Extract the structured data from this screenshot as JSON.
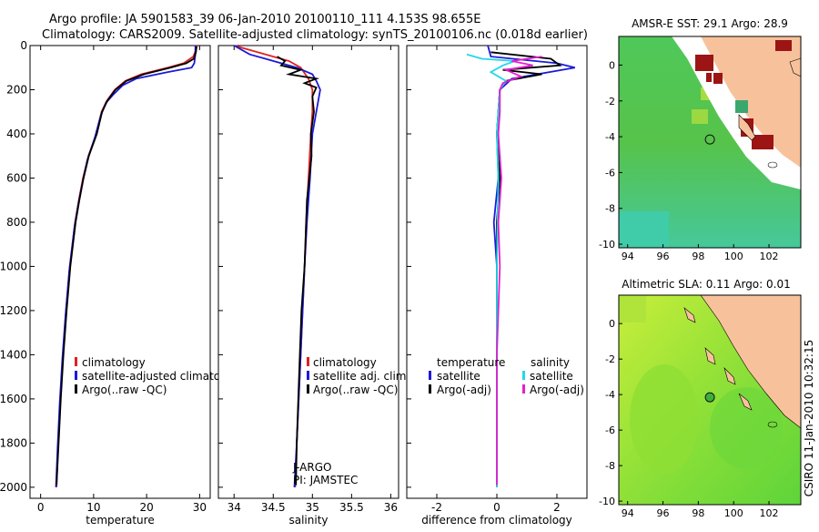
{
  "title": {
    "line1": "Argo profile: JA 5901583_39 06-Jan-2010 20100110_111 4.153S 98.655E",
    "line2": "Climatology: CARS2009. Satellite-adjusted climatology: synTS_20100106.nc (0.018d earlier)"
  },
  "side_label": "CSIRO 11-Jan-2010 10:32:15",
  "colors": {
    "climatology": "#dd2222",
    "satellite": "#1a1ad8",
    "argo": "#000000",
    "salinity_satellite": "#22d8e8",
    "salinity_argo": "#e020d0",
    "land": "#f7c29b",
    "marker_sst": "#111111",
    "marker_sla": "#3cae3c"
  },
  "chart_data": [
    {
      "type": "line",
      "name": "temperature",
      "xlabel": "temperature",
      "ylabel": "",
      "xlim": [
        -2,
        32
      ],
      "ylim": [
        2050,
        0
      ],
      "xticks": [
        0,
        10,
        20,
        30
      ],
      "yticks": [
        0,
        200,
        400,
        600,
        800,
        1000,
        1200,
        1400,
        1600,
        1800,
        2000
      ],
      "legend": [
        "climatology",
        "satellite-adjusted climatology",
        "Argo(..raw -QC)"
      ],
      "series": [
        {
          "name": "climatology",
          "color_key": "climatology",
          "points": [
            [
              29.5,
              0
            ],
            [
              29.3,
              20
            ],
            [
              28.8,
              50
            ],
            [
              27.0,
              80
            ],
            [
              24.0,
              100
            ],
            [
              19.0,
              130
            ],
            [
              16.0,
              160
            ],
            [
              14.0,
              200
            ],
            [
              12.5,
              250
            ],
            [
              11.5,
              300
            ],
            [
              10.5,
              400
            ],
            [
              9.0,
              500
            ],
            [
              8.0,
              600
            ],
            [
              7.2,
              700
            ],
            [
              6.5,
              800
            ],
            [
              6.0,
              900
            ],
            [
              5.5,
              1000
            ],
            [
              4.8,
              1200
            ],
            [
              4.2,
              1400
            ],
            [
              3.7,
              1600
            ],
            [
              3.3,
              1800
            ],
            [
              3.0,
              2000
            ]
          ]
        },
        {
          "name": "satellite",
          "color_key": "satellite",
          "points": [
            [
              29.2,
              0
            ],
            [
              29.2,
              40
            ],
            [
              29.0,
              80
            ],
            [
              28.5,
              100
            ],
            [
              24.0,
              120
            ],
            [
              18.0,
              150
            ],
            [
              15.5,
              180
            ],
            [
              13.8,
              220
            ],
            [
              12.3,
              260
            ],
            [
              11.3,
              320
            ],
            [
              10.2,
              420
            ],
            [
              8.8,
              520
            ],
            [
              7.9,
              620
            ],
            [
              7.1,
              720
            ],
            [
              6.4,
              820
            ],
            [
              5.9,
              920
            ],
            [
              5.4,
              1020
            ],
            [
              4.7,
              1220
            ],
            [
              4.1,
              1420
            ],
            [
              3.6,
              1620
            ],
            [
              3.2,
              1820
            ],
            [
              2.9,
              2000
            ]
          ]
        },
        {
          "name": "argo",
          "color_key": "argo",
          "points": [
            [
              29.4,
              5
            ],
            [
              29.3,
              30
            ],
            [
              28.9,
              60
            ],
            [
              27.5,
              80
            ],
            [
              24.5,
              100
            ],
            [
              19.5,
              130
            ],
            [
              16.2,
              160
            ],
            [
              14.1,
              200
            ],
            [
              12.6,
              250
            ],
            [
              11.6,
              300
            ],
            [
              10.6,
              400
            ],
            [
              9.1,
              500
            ],
            [
              8.1,
              600
            ],
            [
              7.3,
              700
            ],
            [
              6.6,
              800
            ],
            [
              6.1,
              900
            ],
            [
              5.6,
              1000
            ],
            [
              4.9,
              1200
            ],
            [
              4.3,
              1400
            ],
            [
              3.8,
              1600
            ],
            [
              3.4,
              1800
            ],
            [
              3.0,
              1990
            ]
          ]
        }
      ]
    },
    {
      "type": "line",
      "name": "salinity",
      "xlabel": "salinity",
      "xlim": [
        33.8,
        36.1
      ],
      "ylim": [
        2050,
        0
      ],
      "xticks": [
        34,
        34.5,
        35,
        35.5,
        36
      ],
      "legend": [
        "climatology",
        "satellite adj. clim.",
        "Argo(..raw -QC)"
      ],
      "series": [
        {
          "name": "climatology",
          "color_key": "climatology",
          "points": [
            [
              34.0,
              0
            ],
            [
              34.3,
              30
            ],
            [
              34.5,
              50
            ],
            [
              34.7,
              70
            ],
            [
              34.85,
              100
            ],
            [
              34.95,
              150
            ],
            [
              35.0,
              200
            ],
            [
              35.0,
              300
            ],
            [
              34.98,
              400
            ],
            [
              34.95,
              600
            ],
            [
              34.92,
              800
            ],
            [
              34.9,
              1000
            ],
            [
              34.85,
              1400
            ],
            [
              34.8,
              1800
            ],
            [
              34.78,
              2000
            ]
          ]
        },
        {
          "name": "satellite",
          "color_key": "satellite",
          "points": [
            [
              34.0,
              0
            ],
            [
              34.2,
              40
            ],
            [
              34.4,
              60
            ],
            [
              34.6,
              80
            ],
            [
              34.8,
              100
            ],
            [
              35.0,
              130
            ],
            [
              35.05,
              160
            ],
            [
              35.1,
              200
            ],
            [
              35.05,
              300
            ],
            [
              35.0,
              400
            ],
            [
              34.97,
              600
            ],
            [
              34.93,
              800
            ],
            [
              34.9,
              1000
            ],
            [
              34.85,
              1400
            ],
            [
              34.8,
              1800
            ],
            [
              34.77,
              2000
            ]
          ]
        },
        {
          "name": "argo",
          "color_key": "argo",
          "points": [
            [
              34.55,
              50
            ],
            [
              34.65,
              70
            ],
            [
              34.6,
              90
            ],
            [
              34.85,
              110
            ],
            [
              34.7,
              130
            ],
            [
              35.05,
              150
            ],
            [
              34.9,
              170
            ],
            [
              35.05,
              190
            ],
            [
              35.0,
              230
            ],
            [
              35.02,
              300
            ],
            [
              34.98,
              400
            ],
            [
              34.99,
              500
            ],
            [
              34.96,
              600
            ],
            [
              34.93,
              700
            ],
            [
              34.91,
              900
            ],
            [
              34.9,
              1000
            ],
            [
              34.86,
              1200
            ],
            [
              34.84,
              1400
            ],
            [
              34.82,
              1600
            ],
            [
              34.8,
              1800
            ],
            [
              34.79,
              1990
            ]
          ]
        }
      ],
      "annotations": [
        "J-ARGO",
        "PI: JAMSTEC"
      ]
    },
    {
      "type": "line",
      "name": "difference",
      "xlabel": "difference from climatology",
      "xlim": [
        -3,
        3
      ],
      "ylim": [
        2050,
        0
      ],
      "xticks": [
        -2,
        0,
        2
      ],
      "legend_left_title": "temperature",
      "legend_right_title": "salinity",
      "legend": [
        "satellite",
        "Argo(-adj)",
        "satellite",
        "Argo(-adj)"
      ],
      "series": [
        {
          "name": "temperature satellite",
          "color_key": "satellite",
          "points": [
            [
              -0.3,
              0
            ],
            [
              -0.2,
              50
            ],
            [
              2.0,
              80
            ],
            [
              2.6,
              100
            ],
            [
              0.5,
              150
            ],
            [
              0.1,
              200
            ],
            [
              0.0,
              400
            ],
            [
              0.05,
              600
            ],
            [
              -0.1,
              800
            ],
            [
              0.0,
              1000
            ],
            [
              0.0,
              1400
            ],
            [
              0.0,
              2000
            ]
          ]
        },
        {
          "name": "temperature argo",
          "color_key": "argo",
          "points": [
            [
              -0.2,
              30
            ],
            [
              1.8,
              60
            ],
            [
              2.1,
              90
            ],
            [
              0.2,
              110
            ],
            [
              1.5,
              130
            ],
            [
              0.3,
              160
            ],
            [
              0.1,
              200
            ],
            [
              0.05,
              300
            ],
            [
              0.0,
              400
            ],
            [
              0.1,
              600
            ],
            [
              0.0,
              800
            ],
            [
              0.0,
              1000
            ],
            [
              0.0,
              1400
            ],
            [
              0.0,
              1990
            ]
          ]
        },
        {
          "name": "salinity satellite",
          "color_key": "salinity_satellite",
          "points": [
            [
              -1.0,
              40
            ],
            [
              -0.5,
              60
            ],
            [
              0.6,
              70
            ],
            [
              0.2,
              90
            ],
            [
              -0.2,
              120
            ],
            [
              0.3,
              160
            ],
            [
              0.1,
              200
            ],
            [
              0.0,
              400
            ],
            [
              0.05,
              600
            ],
            [
              0.0,
              1000
            ],
            [
              0.0,
              1400
            ],
            [
              0.0,
              2000
            ]
          ]
        },
        {
          "name": "salinity argo",
          "color_key": "salinity_argo",
          "points": [
            [
              1.5,
              50
            ],
            [
              0.5,
              70
            ],
            [
              1.2,
              90
            ],
            [
              0.3,
              110
            ],
            [
              0.8,
              140
            ],
            [
              0.2,
              170
            ],
            [
              0.1,
              200
            ],
            [
              0.1,
              300
            ],
            [
              0.05,
              400
            ],
            [
              0.15,
              600
            ],
            [
              0.05,
              800
            ],
            [
              0.1,
              1000
            ],
            [
              0.0,
              1400
            ],
            [
              0.0,
              1990
            ]
          ]
        }
      ]
    },
    {
      "type": "heatmap",
      "name": "sst-map",
      "title": "AMSR-E SST: 29.1 Argo: 28.9",
      "xlim": [
        93.5,
        103.8
      ],
      "ylim": [
        -10.2,
        1.6
      ],
      "xticks": [
        94,
        96,
        98,
        100,
        102
      ],
      "yticks": [
        0,
        -2,
        -4,
        -6,
        -8,
        -10
      ],
      "marker": [
        98.655,
        -4.153
      ]
    },
    {
      "type": "heatmap",
      "name": "sla-map",
      "title": "Altimetric SLA: 0.11 Argo: 0.01",
      "xlim": [
        93.5,
        103.8
      ],
      "ylim": [
        -10.2,
        1.6
      ],
      "xticks": [
        94,
        96,
        98,
        100,
        102
      ],
      "yticks": [
        0,
        -2,
        -4,
        -6,
        -8,
        -10
      ],
      "marker": [
        98.655,
        -4.153
      ]
    }
  ]
}
